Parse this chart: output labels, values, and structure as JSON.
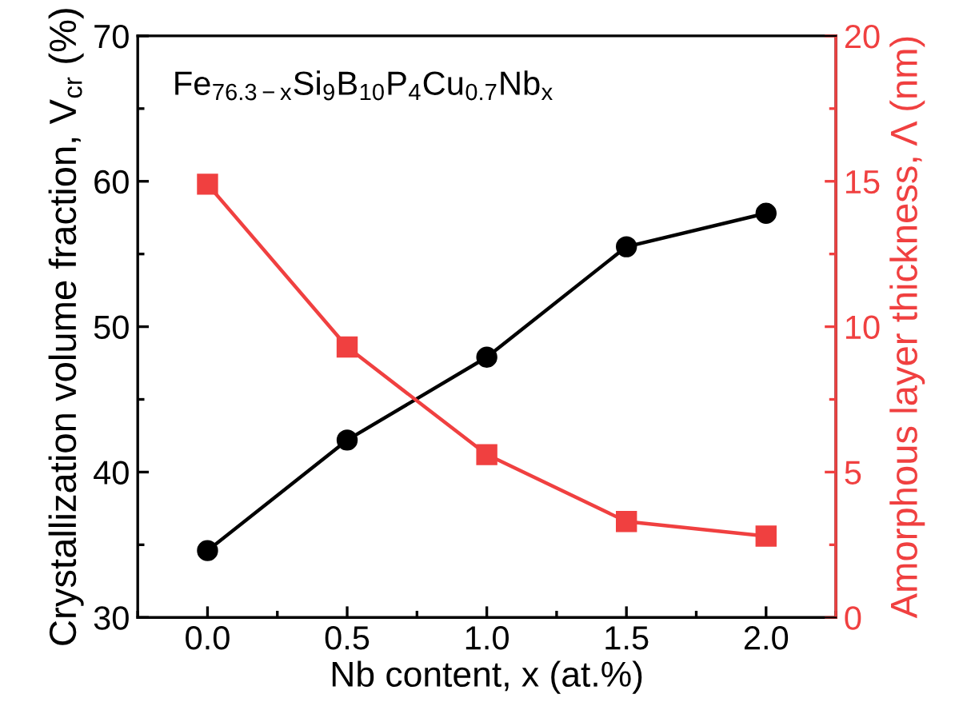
{
  "chart_data": {
    "type": "line",
    "x": [
      0.0,
      0.5,
      1.0,
      1.5,
      2.0
    ],
    "series": [
      {
        "color": "#000000",
        "marker": "circle",
        "values": [
          34.6,
          42.2,
          47.9,
          55.5,
          57.8
        ]
      },
      {
        "color": "#f04040",
        "marker": "square",
        "axis": "y2",
        "values": [
          14.9,
          9.3,
          5.6,
          3.3,
          2.8
        ]
      }
    ],
    "xlabel": "Nb content, x (at.%)",
    "ylabel": "Crystallization volume fraction, V$_{cr}$ (%)",
    "y2label": "Amorphous layer thickness, Λ (nm)",
    "annotations": [
      "Fe$_{76.3−x}$Si$_{9}$B$_{10}$P$_{4}$Cu$_{0.7}$Nb$_{x}$"
    ],
    "xlim": [
      -0.25,
      2.25
    ],
    "xticks": [
      {
        "value": 0.0,
        "label": "0.0"
      },
      {
        "value": 0.5,
        "label": "0.5"
      },
      {
        "value": 1.0,
        "label": "1.0"
      },
      {
        "value": 1.5,
        "label": "1.5"
      },
      {
        "value": 2.0,
        "label": "2.0"
      }
    ],
    "ylim": [
      30,
      70
    ],
    "yticks": [
      30,
      40,
      50,
      60,
      70
    ],
    "y2lim": [
      0,
      20
    ],
    "y2ticks": [
      0,
      5,
      10,
      15,
      20
    ],
    "grid": false,
    "line_style": "solid"
  }
}
